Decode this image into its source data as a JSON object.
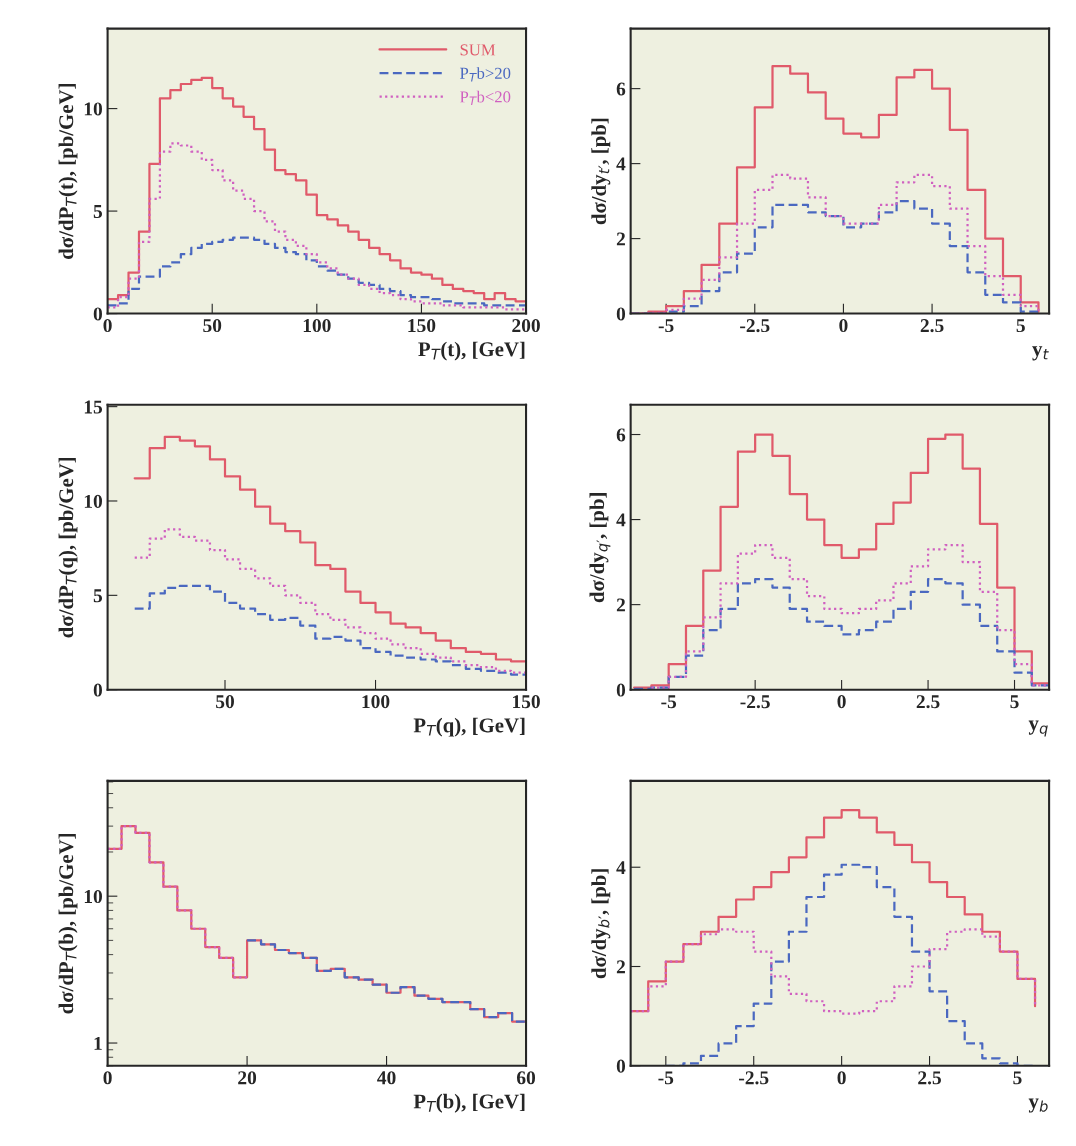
{
  "chart_data": [
    {
      "type": "step",
      "xlabel": "P$_{T}$(t), [GeV]",
      "ylabel": "dσ/dP$_{T}$(t), [pb/GeV]",
      "xlim": [
        0,
        200
      ],
      "ylim": [
        0,
        13.9
      ],
      "xticks": [
        0,
        50,
        100,
        150,
        200
      ],
      "yticks": [
        0,
        5,
        10
      ],
      "legend": "top right",
      "series": [
        {
          "name": "SUM",
          "color": "#e05a6a",
          "line_style": "solid",
          "x": [
            0,
            5,
            10,
            15,
            20,
            25,
            30,
            35,
            40,
            45,
            50,
            55,
            60,
            65,
            70,
            75,
            80,
            85,
            90,
            95,
            100,
            105,
            110,
            115,
            120,
            125,
            130,
            135,
            140,
            145,
            150,
            155,
            160,
            165,
            170,
            175,
            180,
            185,
            190,
            195,
            200
          ],
          "values": [
            0.7,
            0.9,
            2.0,
            4.0,
            7.3,
            10.5,
            10.9,
            11.2,
            11.4,
            11.5,
            11.0,
            10.5,
            10.1,
            9.6,
            9.0,
            8.0,
            7.0,
            6.8,
            6.5,
            5.8,
            4.8,
            4.6,
            4.3,
            4.0,
            3.6,
            3.2,
            2.9,
            2.6,
            2.2,
            2.0,
            1.9,
            1.7,
            1.4,
            1.2,
            1.1,
            1.0,
            0.7,
            1.0,
            0.7,
            0.6,
            0.6
          ]
        },
        {
          "name": "P$_{T}$b>20",
          "color": "#4a68c0",
          "line_style": "dashed",
          "x": [
            0,
            5,
            10,
            15,
            20,
            25,
            30,
            35,
            40,
            45,
            50,
            55,
            60,
            65,
            70,
            75,
            80,
            85,
            90,
            95,
            100,
            105,
            110,
            115,
            120,
            125,
            130,
            135,
            140,
            145,
            150,
            155,
            160,
            165,
            170,
            175,
            180,
            185,
            190,
            195,
            200
          ],
          "values": [
            0.4,
            0.5,
            1.2,
            1.8,
            1.8,
            2.3,
            2.5,
            2.9,
            3.2,
            3.4,
            3.5,
            3.6,
            3.7,
            3.7,
            3.6,
            3.4,
            3.2,
            3.0,
            2.9,
            2.6,
            2.3,
            2.1,
            1.9,
            1.7,
            1.5,
            1.4,
            1.2,
            1.1,
            0.9,
            0.8,
            0.8,
            0.7,
            0.6,
            0.5,
            0.5,
            0.5,
            0.4,
            0.4,
            0.4,
            0.4,
            0.4
          ]
        },
        {
          "name": "P$_{T}$b<20",
          "color": "#d060c0",
          "line_style": "dotted",
          "x": [
            0,
            5,
            10,
            15,
            20,
            25,
            30,
            35,
            40,
            45,
            50,
            55,
            60,
            65,
            70,
            75,
            80,
            85,
            90,
            95,
            100,
            105,
            110,
            115,
            120,
            125,
            130,
            135,
            140,
            145,
            150,
            155,
            160,
            165,
            170,
            175,
            180,
            185,
            190,
            195,
            200
          ],
          "values": [
            0.3,
            0.8,
            1.7,
            3.5,
            5.6,
            7.9,
            8.3,
            8.2,
            7.9,
            7.5,
            7.0,
            6.5,
            6.0,
            5.6,
            5.0,
            4.5,
            4.0,
            3.6,
            3.3,
            2.9,
            2.5,
            2.2,
            1.9,
            1.7,
            1.4,
            1.2,
            1.0,
            0.9,
            0.7,
            0.6,
            0.5,
            0.5,
            0.4,
            0.4,
            0.3,
            0.3,
            0.3,
            0.3,
            0.2,
            0.2,
            0.2
          ]
        }
      ]
    },
    {
      "type": "step",
      "xlabel": "y$_{t}$",
      "ylabel": "dσ/dy$_{t′}$, [pb]",
      "xlim": [
        -6,
        5.8
      ],
      "ylim": [
        0,
        7.6
      ],
      "xticks": [
        -5,
        -2.5,
        0,
        2.5,
        5
      ],
      "yticks": [
        0,
        2,
        4,
        6
      ],
      "series": [
        {
          "color": "#e05a6a",
          "line_style": "solid",
          "x": [
            -6,
            -5.5,
            -5,
            -4.5,
            -4,
            -3.5,
            -3,
            -2.5,
            -2,
            -1.5,
            -1,
            -0.5,
            0,
            0.5,
            1,
            1.5,
            2,
            2.5,
            3,
            3.5,
            4,
            4.5,
            5,
            5.5
          ],
          "values": [
            0,
            0.05,
            0.2,
            0.6,
            1.3,
            2.4,
            3.9,
            5.5,
            6.6,
            6.4,
            5.9,
            5.2,
            4.8,
            4.7,
            5.3,
            6.3,
            6.5,
            6.0,
            4.9,
            3.3,
            2.0,
            1.0,
            0.3,
            0.05
          ]
        },
        {
          "color": "#4a68c0",
          "line_style": "dashed",
          "x": [
            -6,
            -5.5,
            -5,
            -4.5,
            -4,
            -3.5,
            -3,
            -2.5,
            -2,
            -1.5,
            -1,
            -0.5,
            0,
            0.5,
            1,
            1.5,
            2,
            2.5,
            3,
            3.5,
            4,
            4.5,
            5,
            5.5
          ],
          "values": [
            0,
            0,
            0.05,
            0.2,
            0.6,
            1.1,
            1.6,
            2.3,
            2.9,
            2.9,
            2.7,
            2.6,
            2.3,
            2.4,
            2.7,
            3.0,
            2.8,
            2.4,
            1.8,
            1.1,
            0.5,
            0.3,
            0.05,
            0
          ]
        },
        {
          "color": "#d060c0",
          "line_style": "dotted",
          "x": [
            -6,
            -5.5,
            -5,
            -4.5,
            -4,
            -3.5,
            -3,
            -2.5,
            -2,
            -1.5,
            -1,
            -0.5,
            0,
            0.5,
            1,
            1.5,
            2,
            2.5,
            3,
            3.5,
            4,
            4.5,
            5,
            5.5
          ],
          "values": [
            0,
            0.02,
            0.1,
            0.4,
            0.9,
            1.5,
            2.4,
            3.3,
            3.7,
            3.6,
            3.1,
            2.6,
            2.4,
            2.4,
            2.9,
            3.5,
            3.7,
            3.4,
            2.8,
            1.8,
            1.0,
            0.5,
            0.2,
            0.02
          ]
        }
      ]
    },
    {
      "type": "step",
      "xlabel": "P$_{T}$(q), [GeV]",
      "ylabel": "dσ/dP$_{T}$(q), [pb/GeV]",
      "xlim": [
        11,
        150
      ],
      "ylim": [
        0,
        15.1
      ],
      "xticks": [
        50,
        100,
        150
      ],
      "yticks": [
        0,
        5,
        10,
        15
      ],
      "series": [
        {
          "color": "#e05a6a",
          "line_style": "solid",
          "x": [
            20,
            25,
            30,
            35,
            40,
            45,
            50,
            55,
            60,
            65,
            70,
            75,
            80,
            85,
            90,
            95,
            100,
            105,
            110,
            115,
            120,
            125,
            130,
            135,
            140,
            145,
            150
          ],
          "values": [
            11.2,
            12.8,
            13.4,
            13.2,
            12.9,
            12.2,
            11.3,
            10.6,
            9.7,
            8.8,
            8.4,
            7.8,
            6.6,
            6.4,
            5.2,
            4.6,
            4.1,
            3.5,
            3.3,
            3.0,
            2.6,
            2.2,
            2.0,
            1.9,
            1.6,
            1.5,
            1.5
          ]
        },
        {
          "color": "#4a68c0",
          "line_style": "dashed",
          "x": [
            20,
            25,
            30,
            35,
            40,
            45,
            50,
            55,
            60,
            65,
            70,
            75,
            80,
            85,
            90,
            95,
            100,
            105,
            110,
            115,
            120,
            125,
            130,
            135,
            140,
            145,
            150
          ],
          "values": [
            4.3,
            5.1,
            5.4,
            5.5,
            5.5,
            5.2,
            4.6,
            4.3,
            4.0,
            3.7,
            3.8,
            3.4,
            2.7,
            2.8,
            2.6,
            2.2,
            2.0,
            1.8,
            1.7,
            1.6,
            1.5,
            1.3,
            1.1,
            1.0,
            0.9,
            0.8,
            0.8
          ]
        },
        {
          "color": "#d060c0",
          "line_style": "dotted",
          "x": [
            20,
            25,
            30,
            35,
            40,
            45,
            50,
            55,
            60,
            65,
            70,
            75,
            80,
            85,
            90,
            95,
            100,
            105,
            110,
            115,
            120,
            125,
            130,
            135,
            140,
            145,
            150
          ],
          "values": [
            7.0,
            8.0,
            8.5,
            8.1,
            7.9,
            7.4,
            6.9,
            6.4,
            5.9,
            5.5,
            5.0,
            4.6,
            4.0,
            3.7,
            3.3,
            3.0,
            2.7,
            2.4,
            2.2,
            1.9,
            1.7,
            1.5,
            1.3,
            1.2,
            1.0,
            0.9,
            0.9
          ]
        }
      ]
    },
    {
      "type": "step",
      "xlabel": "y$_{q}$",
      "ylabel": "dσ/dy$_{q′}$, [pb]",
      "xlim": [
        -6.1,
        6.0
      ],
      "ylim": [
        0,
        6.7
      ],
      "xticks": [
        -5,
        -2.5,
        0,
        2.5,
        5
      ],
      "yticks": [
        0,
        2,
        4,
        6
      ],
      "series": [
        {
          "color": "#e05a6a",
          "line_style": "solid",
          "x": [
            -6,
            -5.5,
            -5,
            -4.5,
            -4,
            -3.5,
            -3,
            -2.5,
            -2,
            -1.5,
            -1,
            -0.5,
            0,
            0.5,
            1,
            1.5,
            2,
            2.5,
            3,
            3.5,
            4,
            4.5,
            5,
            5.5,
            6
          ],
          "values": [
            0.05,
            0.1,
            0.6,
            1.5,
            2.8,
            4.3,
            5.6,
            6.0,
            5.5,
            4.6,
            4.0,
            3.4,
            3.1,
            3.3,
            3.9,
            4.4,
            5.1,
            5.9,
            6.0,
            5.2,
            3.9,
            2.4,
            0.9,
            0.15,
            0.15
          ]
        },
        {
          "color": "#4a68c0",
          "line_style": "dashed",
          "x": [
            -6,
            -5.5,
            -5,
            -4.5,
            -4,
            -3.5,
            -3,
            -2.5,
            -2,
            -1.5,
            -1,
            -0.5,
            0,
            0.5,
            1,
            1.5,
            2,
            2.5,
            3,
            3.5,
            4,
            4.5,
            5,
            5.5,
            6
          ],
          "values": [
            0.02,
            0.05,
            0.3,
            0.8,
            1.4,
            1.9,
            2.5,
            2.6,
            2.4,
            1.9,
            1.6,
            1.5,
            1.3,
            1.4,
            1.6,
            1.9,
            2.3,
            2.6,
            2.5,
            2.0,
            1.5,
            0.9,
            0.4,
            0.1,
            0.1
          ]
        },
        {
          "color": "#d060c0",
          "line_style": "dotted",
          "x": [
            -5.5,
            -5,
            -4.5,
            -4,
            -3.5,
            -3,
            -2.5,
            -2,
            -1.5,
            -1,
            -0.5,
            0,
            0.5,
            1,
            1.5,
            2,
            2.5,
            3,
            3.5,
            4,
            4.5,
            5,
            5.5,
            6
          ],
          "values": [
            0.05,
            0.3,
            0.9,
            1.7,
            2.5,
            3.2,
            3.4,
            3.1,
            2.6,
            2.2,
            1.9,
            1.8,
            1.9,
            2.1,
            2.5,
            2.9,
            3.3,
            3.4,
            3.0,
            2.3,
            1.4,
            0.6,
            0.1,
            0.1
          ]
        }
      ]
    },
    {
      "type": "step",
      "xlabel": "P$_{T}$(b), [GeV]",
      "ylabel": "dσ/dP$_{T}$(b), [pb/GeV]",
      "log": "y",
      "xlim": [
        0,
        60
      ],
      "ylim": [
        0.7,
        61
      ],
      "xticks": [
        0,
        20,
        40,
        60
      ],
      "yticks": [
        1,
        10
      ],
      "series": [
        {
          "color": "#e05a6a",
          "line_style": "solid",
          "x": [
            0,
            2,
            4,
            6,
            8,
            10,
            12,
            14,
            16,
            18,
            20,
            22,
            24,
            26,
            28,
            30,
            32,
            34,
            36,
            38,
            40,
            42,
            44,
            46,
            48,
            50,
            52,
            54,
            56,
            58,
            60
          ],
          "values": [
            21,
            30,
            27,
            17,
            11.6,
            8.0,
            6.0,
            4.5,
            3.8,
            2.8,
            5.0,
            4.7,
            4.3,
            4.1,
            3.8,
            3.1,
            3.2,
            2.8,
            2.7,
            2.5,
            2.2,
            2.4,
            2.1,
            2.0,
            1.9,
            1.9,
            1.7,
            1.5,
            1.6,
            1.4,
            1.4
          ]
        },
        {
          "color": "#4a68c0",
          "line_style": "dashed",
          "x": [
            20,
            22,
            24,
            26,
            28,
            30,
            32,
            34,
            36,
            38,
            40,
            42,
            44,
            46,
            48,
            50,
            52,
            54,
            56,
            58,
            60
          ],
          "values": [
            5.0,
            4.7,
            4.3,
            4.1,
            3.8,
            3.1,
            3.2,
            2.8,
            2.7,
            2.5,
            2.2,
            2.4,
            2.1,
            2.0,
            1.9,
            1.9,
            1.7,
            1.5,
            1.6,
            1.4,
            1.4
          ]
        },
        {
          "color": "#d060c0",
          "line_style": "dotted",
          "x": [
            0,
            2,
            4,
            6,
            8,
            10,
            12,
            14,
            16,
            18,
            20
          ],
          "values": [
            21,
            30,
            27,
            17,
            11.6,
            8.0,
            6.0,
            4.5,
            3.8,
            2.8,
            2.8
          ]
        }
      ]
    },
    {
      "type": "step",
      "xlabel": "y$_{b}$",
      "ylabel": "dσ/dy$_{b′}$, [pb]",
      "xlim": [
        -6,
        5.9
      ],
      "ylim": [
        0,
        5.74
      ],
      "xticks": [
        -5,
        -2.5,
        0,
        2.5,
        5
      ],
      "yticks": [
        0,
        2,
        4
      ],
      "series": [
        {
          "color": "#e05a6a",
          "line_style": "solid",
          "x": [
            -6,
            -5.5,
            -5,
            -4.5,
            -4,
            -3.5,
            -3,
            -2.5,
            -2,
            -1.5,
            -1,
            -0.5,
            0,
            0.5,
            1,
            1.5,
            2,
            2.5,
            3,
            3.5,
            4,
            4.5,
            5,
            5.5
          ],
          "values": [
            1.1,
            1.7,
            2.1,
            2.45,
            2.7,
            3.0,
            3.35,
            3.6,
            3.9,
            4.2,
            4.6,
            5.0,
            5.15,
            5.0,
            4.7,
            4.45,
            4.1,
            3.7,
            3.4,
            3.05,
            2.7,
            2.3,
            1.75,
            1.2
          ]
        },
        {
          "color": "#4a68c0",
          "line_style": "dashed",
          "x": [
            -5,
            -4.5,
            -4,
            -3.5,
            -3,
            -2.5,
            -2,
            -1.5,
            -1,
            -0.5,
            0,
            0.5,
            1,
            1.5,
            2,
            2.5,
            3,
            3.5,
            4,
            4.5,
            5,
            5.5
          ],
          "values": [
            0,
            0.05,
            0.2,
            0.45,
            0.8,
            1.25,
            2.1,
            2.7,
            3.4,
            3.85,
            4.05,
            4.0,
            3.6,
            3.0,
            2.3,
            1.5,
            0.9,
            0.45,
            0.15,
            0.05,
            0,
            0
          ]
        },
        {
          "color": "#d060c0",
          "line_style": "dotted",
          "x": [
            -6,
            -5.5,
            -5,
            -4.5,
            -4,
            -3.5,
            -3,
            -2.5,
            -2,
            -1.5,
            -1,
            -0.5,
            0,
            0.5,
            1,
            1.5,
            2,
            2.5,
            3,
            3.5,
            4,
            4.5,
            5,
            5.5
          ],
          "values": [
            1.1,
            1.6,
            2.1,
            2.45,
            2.65,
            2.75,
            2.7,
            2.3,
            1.8,
            1.45,
            1.3,
            1.1,
            1.05,
            1.1,
            1.3,
            1.6,
            2.0,
            2.35,
            2.7,
            2.75,
            2.6,
            2.3,
            1.75,
            1.2
          ]
        }
      ]
    }
  ]
}
